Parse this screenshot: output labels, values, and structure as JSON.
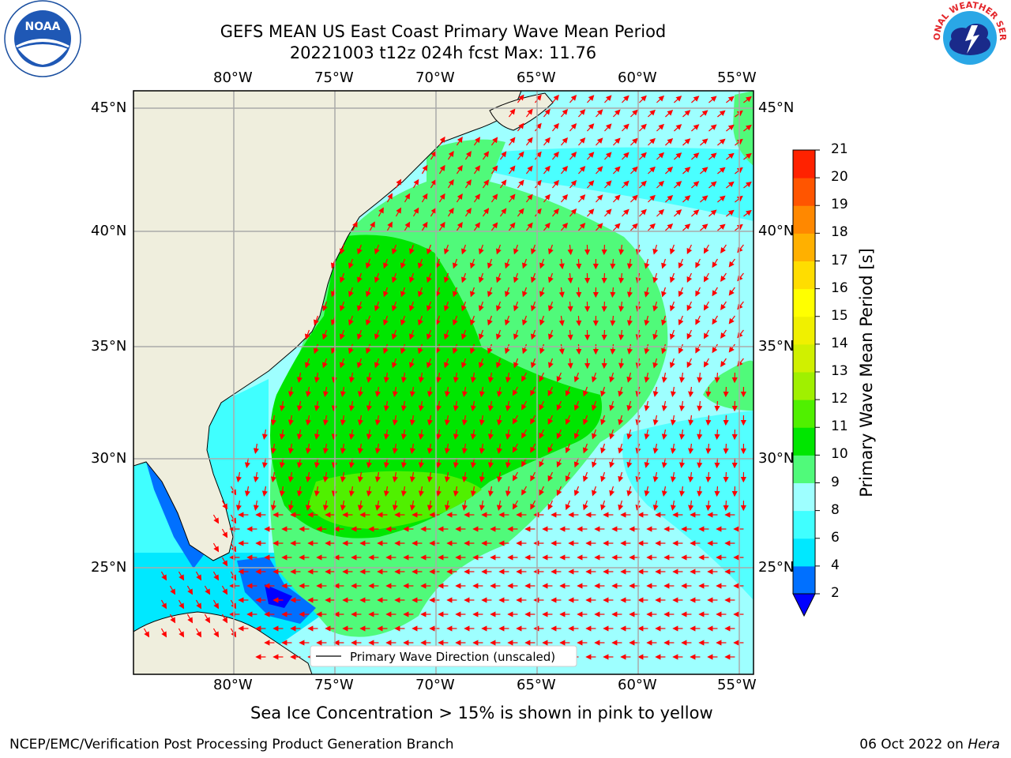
{
  "header": {
    "title_line1": "GEFS MEAN US East Coast Primary Wave Mean Period",
    "title_line2": "20221003 t12z 024h fcst   Max: 11.76"
  },
  "logos": {
    "left": {
      "icon": "noaa-logo-icon",
      "text": "NOAA"
    },
    "right": {
      "icon": "nws-logo-icon",
      "text": "NATIONAL WEATHER SERVICE"
    }
  },
  "map": {
    "lon_labels": [
      "80°W",
      "75°W",
      "70°W",
      "65°W",
      "60°W",
      "55°W"
    ],
    "lat_labels": [
      "45°N",
      "40°N",
      "35°N",
      "30°N",
      "25°N"
    ],
    "legend_label": "Primary Wave Direction (unscaled)",
    "colors": {
      "land": "#efeedd",
      "vector": "#ff0000",
      "grid": "#aaaaaa"
    }
  },
  "colorbar": {
    "label": "Primary Wave Mean Period [s]",
    "ticks": [
      "2",
      "4",
      "6",
      "8",
      "9",
      "10",
      "11",
      "12",
      "13",
      "14",
      "15",
      "16",
      "17",
      "18",
      "19",
      "20",
      "21"
    ],
    "colors": [
      "#0070ff",
      "#00e8ff",
      "#40ffff",
      "#9effff",
      "#50fa7a",
      "#00e600",
      "#50f000",
      "#a0f000",
      "#d0f000",
      "#f0f000",
      "#ffff00",
      "#ffdd00",
      "#ffb000",
      "#ff8800",
      "#ff5500",
      "#ff2200"
    ],
    "under_color": "#0000ff"
  },
  "notes": {
    "sea_ice": "Sea Ice Concentration > 15% is shown in pink to yellow",
    "footer_left": "NCEP/EMC/Verification Post Processing Product Generation Branch",
    "footer_right_prefix": "06 Oct 2022 on ",
    "footer_right_machine": "Hera"
  }
}
